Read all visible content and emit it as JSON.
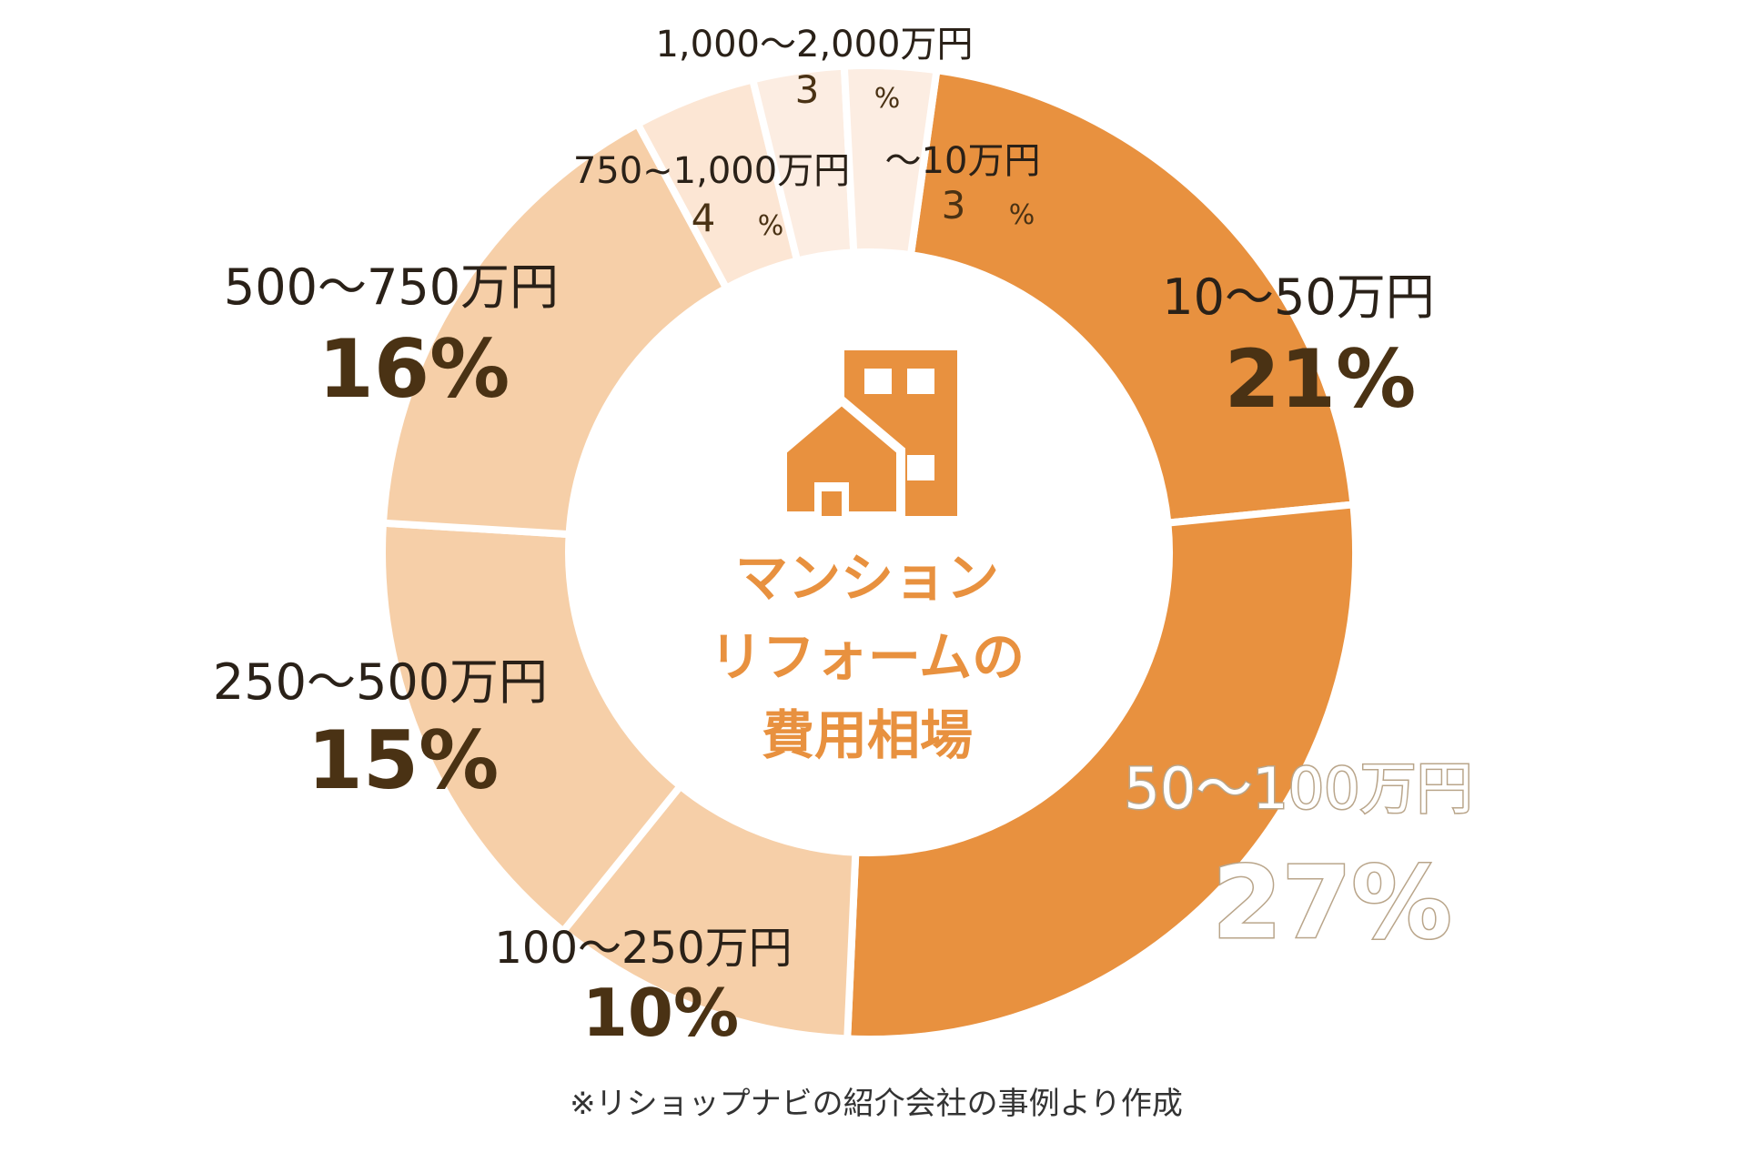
{
  "chart_data": {
    "type": "pie",
    "donut": true,
    "title": "マンションリフォームの費用相場",
    "title_lines": [
      "マンション",
      "リフォームの",
      "費用相場"
    ],
    "categories": [
      "10〜50万円",
      "50〜100万円",
      "100〜250万円",
      "250〜500万円",
      "500〜750万円",
      "750~1,000万円",
      "1,000〜2,000万円",
      "〜10万円"
    ],
    "values": [
      21,
      27,
      10,
      15,
      16,
      4,
      3,
      3
    ],
    "value_labels": [
      "21%",
      "27%",
      "10%",
      "15%",
      "16%",
      "4",
      "3",
      "3"
    ],
    "percent_sign": "%",
    "colors": [
      "#E8913F",
      "#E8913F",
      "#F6CFA8",
      "#F6CFA8",
      "#F6CFA8",
      "#FCE6D4",
      "#FCEDE2",
      "#FCEDE2"
    ],
    "center_icon": "house-building-icon",
    "footnote": "※リショップナビの紹介会社の事例より作成"
  }
}
